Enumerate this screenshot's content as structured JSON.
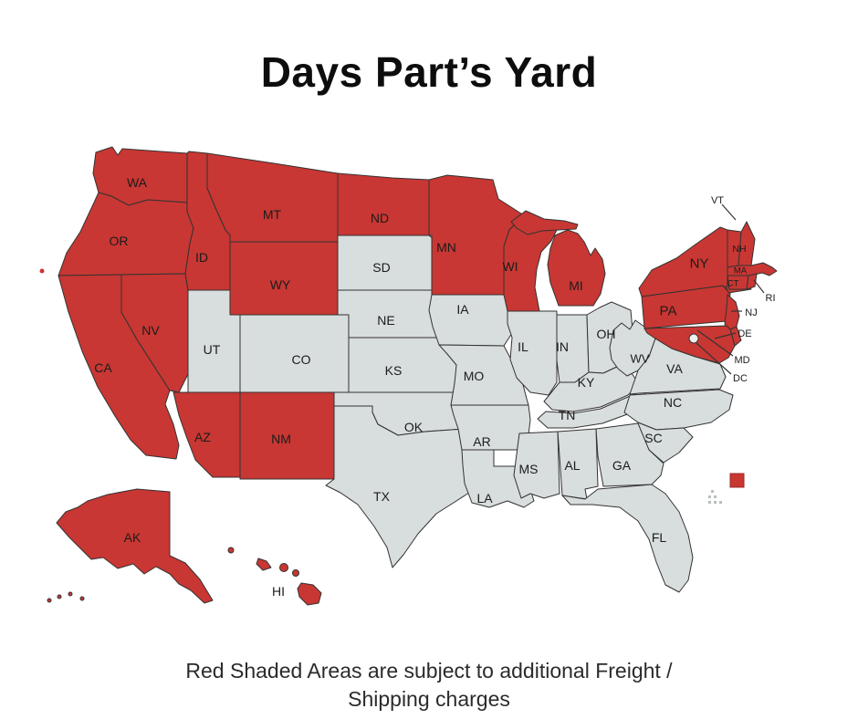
{
  "title": "Days Part’s Yard",
  "caption": {
    "line1": "Red Shaded Areas are subject to additional Freight /",
    "line2": "Shipping charges"
  },
  "colors": {
    "surcharge_red": "#c83733",
    "standard_gray": "#d8dddd",
    "outline": "#333333",
    "dc_marker_fill": "#eef0f0",
    "island_cluster_gray": "#b9bfbf"
  },
  "map": {
    "states": [
      {
        "id": "WA",
        "label": "WA",
        "surcharge": true
      },
      {
        "id": "OR",
        "label": "OR",
        "surcharge": true
      },
      {
        "id": "CA",
        "label": "CA",
        "surcharge": true
      },
      {
        "id": "NV",
        "label": "NV",
        "surcharge": true
      },
      {
        "id": "ID",
        "label": "ID",
        "surcharge": true
      },
      {
        "id": "MT",
        "label": "MT",
        "surcharge": true
      },
      {
        "id": "WY",
        "label": "WY",
        "surcharge": true
      },
      {
        "id": "UT",
        "label": "UT",
        "surcharge": false
      },
      {
        "id": "CO",
        "label": "CO",
        "surcharge": false
      },
      {
        "id": "AZ",
        "label": "AZ",
        "surcharge": true
      },
      {
        "id": "NM",
        "label": "NM",
        "surcharge": true
      },
      {
        "id": "ND",
        "label": "ND",
        "surcharge": true
      },
      {
        "id": "SD",
        "label": "SD",
        "surcharge": false
      },
      {
        "id": "NE",
        "label": "NE",
        "surcharge": false
      },
      {
        "id": "KS",
        "label": "KS",
        "surcharge": false
      },
      {
        "id": "OK",
        "label": "OK",
        "surcharge": false
      },
      {
        "id": "TX",
        "label": "TX",
        "surcharge": false
      },
      {
        "id": "MN",
        "label": "MN",
        "surcharge": true
      },
      {
        "id": "IA",
        "label": "IA",
        "surcharge": false
      },
      {
        "id": "MO",
        "label": "MO",
        "surcharge": false
      },
      {
        "id": "AR",
        "label": "AR",
        "surcharge": false
      },
      {
        "id": "LA",
        "label": "LA",
        "surcharge": false
      },
      {
        "id": "WI",
        "label": "WI",
        "surcharge": true
      },
      {
        "id": "IL",
        "label": "IL",
        "surcharge": false
      },
      {
        "id": "MI",
        "label": "MI",
        "surcharge": true
      },
      {
        "id": "IN",
        "label": "IN",
        "surcharge": false
      },
      {
        "id": "OH",
        "label": "OH",
        "surcharge": false
      },
      {
        "id": "KY",
        "label": "KY",
        "surcharge": false
      },
      {
        "id": "TN",
        "label": "TN",
        "surcharge": false
      },
      {
        "id": "WV",
        "label": "WV",
        "surcharge": false
      },
      {
        "id": "VA",
        "label": "VA",
        "surcharge": false
      },
      {
        "id": "NC",
        "label": "NC",
        "surcharge": false
      },
      {
        "id": "SC",
        "label": "SC",
        "surcharge": false
      },
      {
        "id": "GA",
        "label": "GA",
        "surcharge": false
      },
      {
        "id": "AL",
        "label": "AL",
        "surcharge": false
      },
      {
        "id": "MS",
        "label": "MS",
        "surcharge": false
      },
      {
        "id": "FL",
        "label": "FL",
        "surcharge": false
      },
      {
        "id": "PA",
        "label": "PA",
        "surcharge": true
      },
      {
        "id": "NY",
        "label": "NY",
        "surcharge": true
      },
      {
        "id": "NJ",
        "label": "NJ",
        "surcharge": true
      },
      {
        "id": "DE",
        "label": "DE",
        "surcharge": true
      },
      {
        "id": "MD",
        "label": "MD",
        "surcharge": true
      },
      {
        "id": "VT",
        "label": "VT",
        "surcharge": true
      },
      {
        "id": "NH",
        "label": "NH",
        "surcharge": true
      },
      {
        "id": "MA",
        "label": "MA",
        "surcharge": true
      },
      {
        "id": "CT",
        "label": "CT",
        "surcharge": true
      },
      {
        "id": "RI",
        "label": "RI",
        "surcharge": true
      },
      {
        "id": "DC",
        "label": "DC",
        "surcharge": false
      },
      {
        "id": "AK",
        "label": "AK",
        "surcharge": true
      },
      {
        "id": "HI",
        "label": "HI",
        "surcharge": true
      }
    ]
  }
}
